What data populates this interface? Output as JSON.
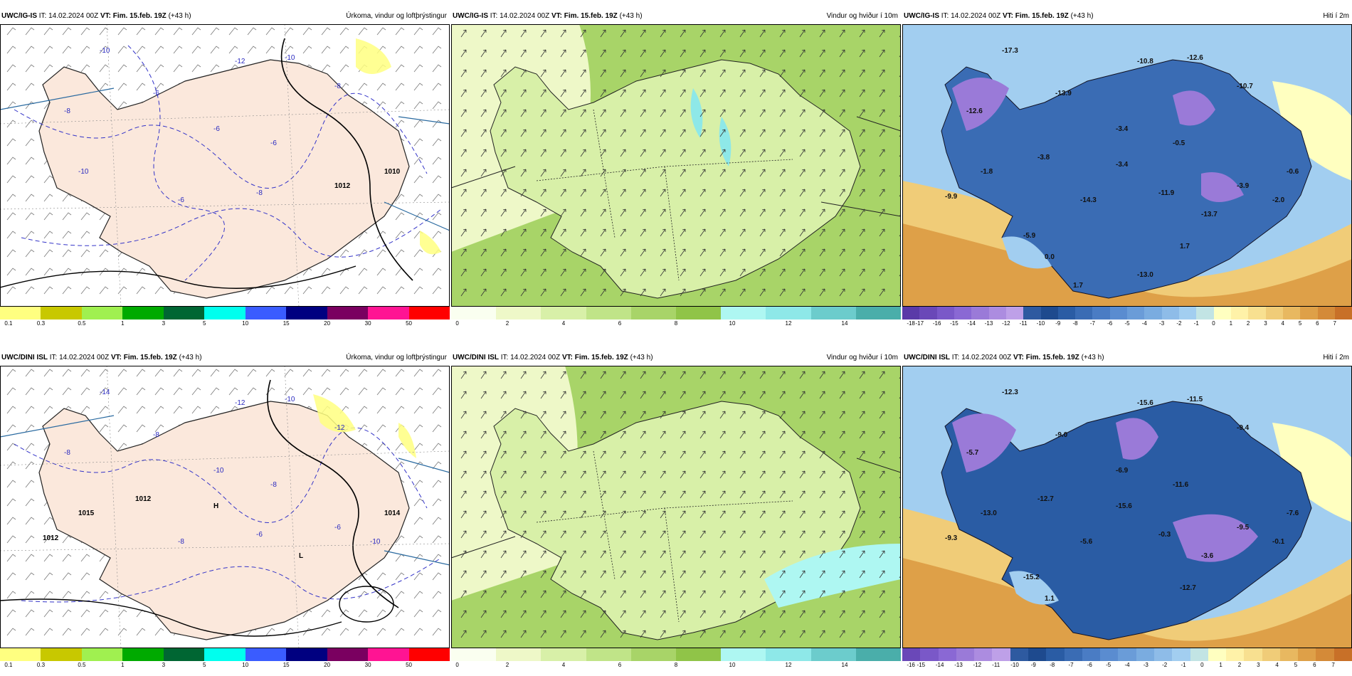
{
  "rows": [
    {
      "model": "UWC/IG-IS",
      "panels": [
        {
          "kind": "precip",
          "it_label": "IT:",
          "it": "14.02.2024 00Z",
          "vt_label": "VT:",
          "vt": "Fim. 15.feb. 19Z",
          "lead": "(+43 h)",
          "title": "Úrkoma, vindur og loftþrýstingur",
          "colorbar": [
            "#ffff80",
            "#c8c800",
            "#a0f050",
            "#00aa00",
            "#006633",
            "#00ffee",
            "#3a5cff",
            "#000080",
            "#7a0060",
            "#ff1493",
            "#ff0000"
          ],
          "ticks": [
            "0.1",
            "0.3",
            "0.5",
            "1",
            "3",
            "5",
            "10",
            "15",
            "20",
            "30",
            "50"
          ],
          "map_labels": [
            "-10",
            "-12",
            "-10",
            "-8",
            "-8",
            "-6",
            "-6",
            "-6",
            "-6",
            "-8",
            "1012",
            "1010",
            "-10"
          ]
        },
        {
          "kind": "wind",
          "it_label": "IT:",
          "it": "14.02.2024 00Z",
          "vt_label": "VT:",
          "vt": "Fim. 15.feb. 19Z",
          "lead": "(+43 h)",
          "title": "Vindur og hviður í 10m",
          "colorbar": [
            "#fafff0",
            "#eef8c8",
            "#d8f0a8",
            "#c0e488",
            "#a8d468",
            "#90c448",
            "#aef7f2",
            "#8ee8e8",
            "#6ccccc",
            "#4aaeaa"
          ],
          "ticks": [
            "0",
            "2",
            "4",
            "6",
            "8",
            "10",
            "12",
            "14"
          ],
          "map_labels": []
        },
        {
          "kind": "temp",
          "it_label": "IT:",
          "it": "14.02.2024 00Z",
          "vt_label": "VT:",
          "vt": "Fim. 15.feb. 19Z",
          "lead": "(+43 h)",
          "title": "Hiti í 2m",
          "colorbar": [
            "#5a3aa8",
            "#6a48b8",
            "#7a58c8",
            "#8a68d4",
            "#9a7ad8",
            "#ac8ce0",
            "#bea0e8",
            "#2e5aa0",
            "#1e4a8e",
            "#2a5ca4",
            "#3a6cb4",
            "#4a7cc4",
            "#5a8cd0",
            "#6a9cd8",
            "#7aace0",
            "#8ebce8",
            "#a2cef0",
            "#c2e4e4",
            "#ffffc0",
            "#fff2a8",
            "#f8e090",
            "#f0cc78",
            "#e8b860",
            "#dea048",
            "#d48a38",
            "#c87028"
          ],
          "ticks": [
            "-18",
            "-17",
            "-16",
            "-15",
            "-14",
            "-13",
            "-12",
            "-11",
            "-10",
            "-9",
            "-8",
            "-7",
            "-6",
            "-5",
            "-4",
            "-3",
            "-2",
            "-1",
            "0",
            "1",
            "2",
            "3",
            "4",
            "5",
            "6",
            "7"
          ],
          "map_labels": [
            "-17.3",
            "-10.8",
            "-12.6",
            "-10.7",
            "-12.6",
            "-13.9",
            "-3.4",
            "-0.5",
            "-14.3",
            "-11.9",
            "-3.9",
            "-0.6",
            "-1.8",
            "-3.8",
            "-9.9",
            "-3.4",
            "-13.7",
            "-2.0",
            "-5.9",
            "0.0",
            "1.7",
            "-13.0",
            "1.7"
          ]
        }
      ]
    },
    {
      "model": "UWC/DINI ISL",
      "panels": [
        {
          "kind": "precip",
          "it_label": "IT:",
          "it": "14.02.2024 00Z",
          "vt_label": "VT:",
          "vt": "Fim. 15.feb. 19Z",
          "lead": "(+43 h)",
          "title": "Úrkoma, vindur og loftþrýstingur",
          "colorbar": [
            "#ffff80",
            "#c8c800",
            "#a0f050",
            "#00aa00",
            "#006633",
            "#00ffee",
            "#3a5cff",
            "#000080",
            "#7a0060",
            "#ff1493",
            "#ff0000"
          ],
          "ticks": [
            "0.1",
            "0.3",
            "0.5",
            "1",
            "3",
            "5",
            "10",
            "15",
            "20",
            "30",
            "50"
          ],
          "map_labels": [
            "-14",
            "-12",
            "-10",
            "-12",
            "-8",
            "-8",
            "-10",
            "-8",
            "-8",
            "-6",
            "-6",
            "1014",
            "1015",
            "1012",
            "1012",
            "H",
            "L",
            "-10"
          ]
        },
        {
          "kind": "wind",
          "it_label": "IT:",
          "it": "14.02.2024 00Z",
          "vt_label": "VT:",
          "vt": "Fim. 15.feb. 19Z",
          "lead": "(+43 h)",
          "title": "Vindur og hviður í 10m",
          "colorbar": [
            "#fafff0",
            "#eef8c8",
            "#d8f0a8",
            "#c0e488",
            "#a8d468",
            "#90c448",
            "#aef7f2",
            "#8ee8e8",
            "#6ccccc",
            "#4aaeaa"
          ],
          "ticks": [
            "0",
            "2",
            "4",
            "6",
            "8",
            "10",
            "12",
            "14"
          ],
          "map_labels": []
        },
        {
          "kind": "temp",
          "it_label": "IT:",
          "it": "14.02.2024 00Z",
          "vt_label": "VT:",
          "vt": "Fim. 15.feb. 19Z",
          "lead": "(+43 h)",
          "title": "Hiti í 2m",
          "colorbar": [
            "#6a48b8",
            "#7a58c8",
            "#8a68d4",
            "#9a7ad8",
            "#ac8ce0",
            "#bea0e8",
            "#2e5aa0",
            "#1e4a8e",
            "#2a5ca4",
            "#3a6cb4",
            "#4a7cc4",
            "#5a8cd0",
            "#6a9cd8",
            "#7aace0",
            "#8ebce8",
            "#a2cef0",
            "#c2e4e4",
            "#ffffc0",
            "#fff2a8",
            "#f8e090",
            "#f0cc78",
            "#e8b860",
            "#dea048",
            "#d48a38",
            "#c87028"
          ],
          "ticks": [
            "-16",
            "-15",
            "-14",
            "-13",
            "-12",
            "-11",
            "-10",
            "-9",
            "-8",
            "-7",
            "-6",
            "-5",
            "-4",
            "-3",
            "-2",
            "-1",
            "0",
            "1",
            "2",
            "3",
            "4",
            "5",
            "6",
            "7"
          ],
          "map_labels": [
            "-12.3",
            "-15.6",
            "-11.5",
            "-9.4",
            "-5.7",
            "-9.0",
            "-6.9",
            "-11.6",
            "-5.6",
            "-0.3",
            "-9.5",
            "-7.6",
            "-13.0",
            "-12.7",
            "-9.3",
            "-15.6",
            "-3.6",
            "-0.1",
            "-15.2",
            "1.1",
            "-12.7"
          ]
        }
      ]
    }
  ]
}
